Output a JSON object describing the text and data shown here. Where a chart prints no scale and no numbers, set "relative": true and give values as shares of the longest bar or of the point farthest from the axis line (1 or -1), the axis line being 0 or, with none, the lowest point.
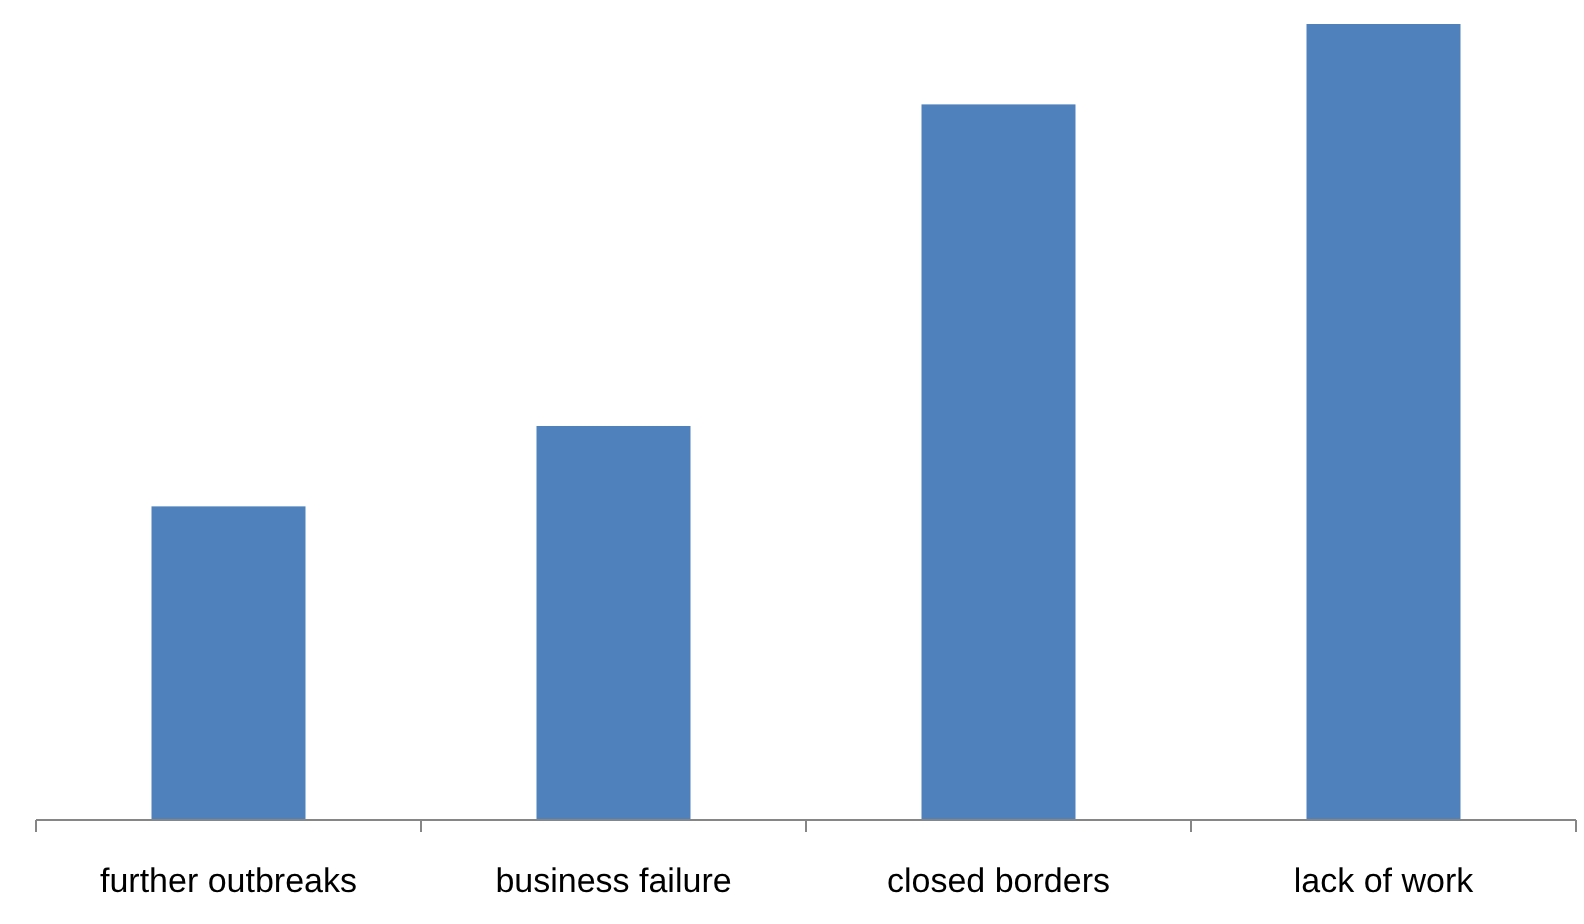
{
  "chart_data": {
    "type": "bar",
    "relative": true,
    "categories": [
      "further outbreaks",
      "business failure",
      "closed borders",
      "lack of work"
    ],
    "values": [
      0.394,
      0.495,
      0.899,
      1
    ],
    "color": "#4f81bd"
  }
}
